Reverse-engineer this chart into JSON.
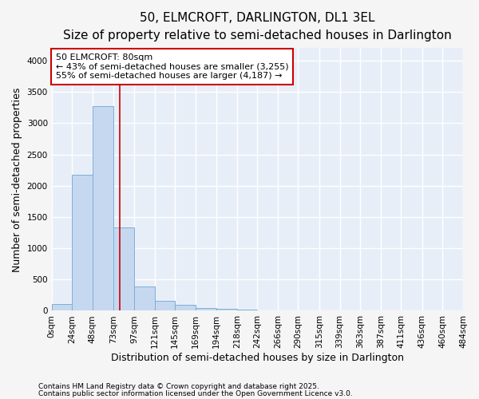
{
  "title": "50, ELMCROFT, DARLINGTON, DL1 3EL",
  "subtitle": "Size of property relative to semi-detached houses in Darlington",
  "xlabel": "Distribution of semi-detached houses by size in Darlington",
  "ylabel": "Number of semi-detached properties",
  "footnote1": "Contains HM Land Registry data © Crown copyright and database right 2025.",
  "footnote2": "Contains public sector information licensed under the Open Government Licence v3.0.",
  "annotation_title": "50 ELMCROFT: 80sqm",
  "annotation_line1": "← 43% of semi-detached houses are smaller (3,255)",
  "annotation_line2": "55% of semi-detached houses are larger (4,187) →",
  "bar_left_edges": [
    0,
    24,
    48,
    73,
    97,
    121,
    145,
    169,
    194,
    218,
    242,
    266,
    290,
    315,
    339,
    363,
    387,
    411,
    436,
    460
  ],
  "bar_widths": [
    24,
    25,
    25,
    24,
    24,
    24,
    24,
    25,
    24,
    24,
    24,
    24,
    25,
    24,
    24,
    24,
    24,
    25,
    24,
    24
  ],
  "bar_heights": [
    110,
    2170,
    3270,
    1330,
    390,
    155,
    90,
    50,
    30,
    15,
    10,
    5,
    2,
    0,
    0,
    0,
    0,
    0,
    0,
    0
  ],
  "bar_color": "#c5d8f0",
  "bar_edge_color": "#7bafd4",
  "red_line_x": 80,
  "ylim": [
    0,
    4200
  ],
  "yticks": [
    0,
    500,
    1000,
    1500,
    2000,
    2500,
    3000,
    3500,
    4000
  ],
  "xtick_labels": [
    "0sqm",
    "24sqm",
    "48sqm",
    "73sqm",
    "97sqm",
    "121sqm",
    "145sqm",
    "169sqm",
    "194sqm",
    "218sqm",
    "242sqm",
    "266sqm",
    "290sqm",
    "315sqm",
    "339sqm",
    "363sqm",
    "387sqm",
    "411sqm",
    "436sqm",
    "460sqm",
    "484sqm"
  ],
  "xtick_positions": [
    0,
    24,
    48,
    73,
    97,
    121,
    145,
    169,
    194,
    218,
    242,
    266,
    290,
    315,
    339,
    363,
    387,
    411,
    436,
    460,
    484
  ],
  "plot_bg_color": "#e8eef8",
  "fig_bg_color": "#f5f5f5",
  "grid_color": "#ffffff",
  "annotation_box_color": "#ffffff",
  "annotation_box_edge": "#cc0000",
  "title_fontsize": 11,
  "subtitle_fontsize": 9.5,
  "axis_label_fontsize": 9,
  "tick_fontsize": 7.5,
  "annotation_fontsize": 8,
  "footnote_fontsize": 6.5
}
